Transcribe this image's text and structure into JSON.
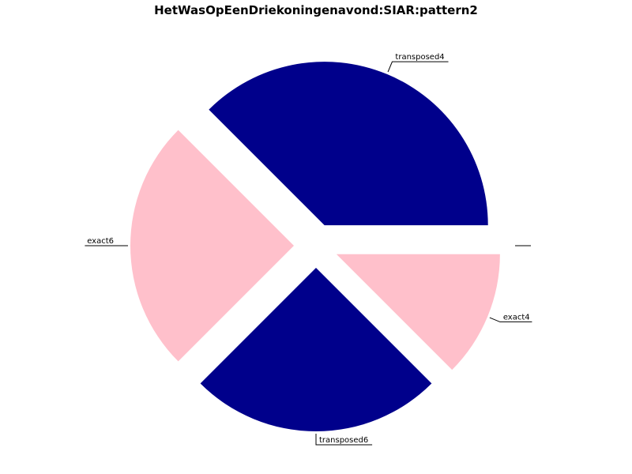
{
  "chart_data": {
    "type": "pie",
    "title": "HetWasOpEenDriekoningenavond:SIAR:pattern2",
    "slices": [
      {
        "label": "transposed4",
        "value": 37.5,
        "color": "#00008b"
      },
      {
        "label": "exact4",
        "value": 12.5,
        "color": "#ffc0cb"
      },
      {
        "label": "transposed6",
        "value": 25,
        "color": "#00008b"
      },
      {
        "label": "exact6",
        "value": 25,
        "color": "#ffc0cb"
      }
    ],
    "unlabeled_slices": [
      {
        "value": 0,
        "color": "#ffc0cb"
      },
      {
        "value": 0,
        "color": "#00008b"
      }
    ]
  }
}
